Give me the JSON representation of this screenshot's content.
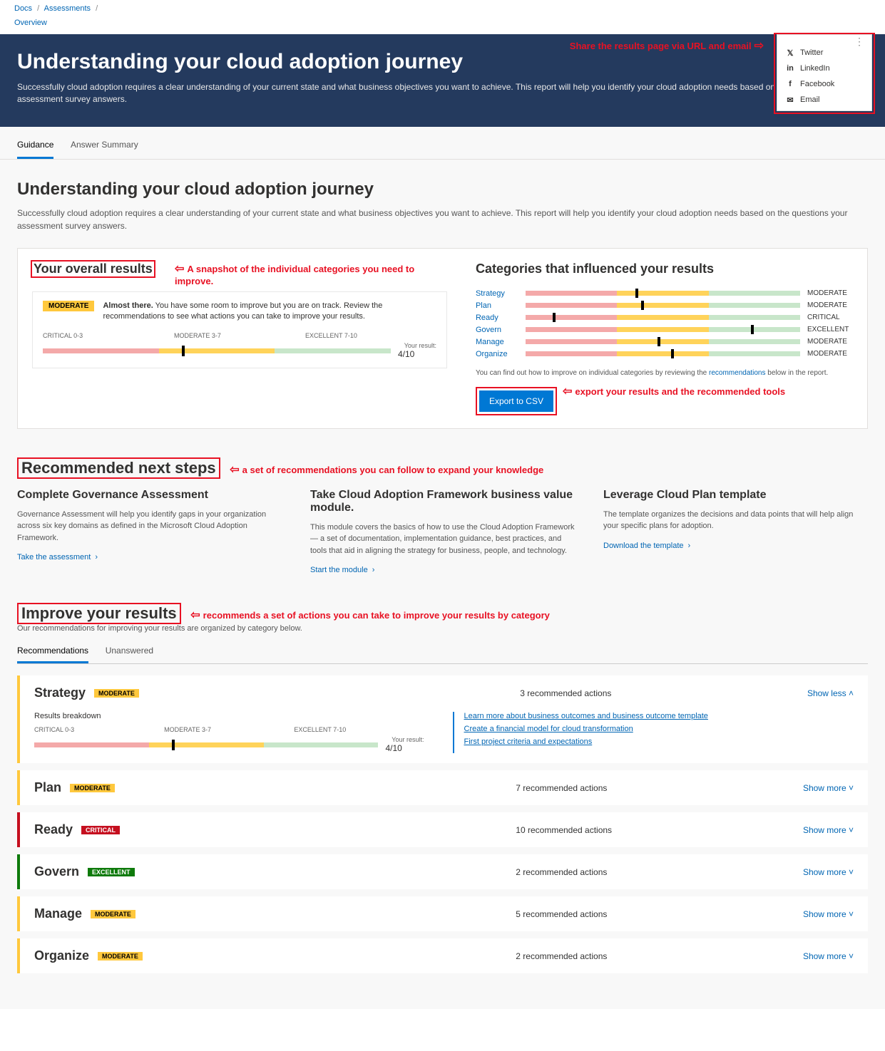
{
  "breadcrumbs": {
    "docs": "Docs",
    "assessments": "Assessments",
    "overview": "Overview"
  },
  "annotations": {
    "share": "Share the results page via URL and email",
    "snapshot": "A snapshot of the individual categories you need to improve.",
    "export": "export your results and the recommended tools",
    "recommended": "a set of recommendations you can follow to expand your knowledge",
    "improve": "recommends a set of actions you can take to improve your results by category"
  },
  "share_menu": {
    "items": [
      {
        "label": "Twitter",
        "icon": "twitter"
      },
      {
        "label": "LinkedIn",
        "icon": "linkedin"
      },
      {
        "label": "Facebook",
        "icon": "facebook"
      },
      {
        "label": "Email",
        "icon": "email"
      }
    ]
  },
  "hero": {
    "title": "Understanding your cloud adoption journey",
    "subtitle": "Successfully cloud adoption requires a clear understanding of your current state and what business objectives you want to achieve. This report will help you identify your cloud adoption needs based on the questions your assessment survey answers."
  },
  "tabs": {
    "guidance": "Guidance",
    "answer_summary": "Answer Summary"
  },
  "page": {
    "title": "Understanding your cloud adoption journey",
    "subtitle": "Successfully cloud adoption requires a clear understanding of your current state and what business objectives you want to achieve. This report will help you identify your cloud adoption needs based on the questions your assessment survey answers."
  },
  "overall": {
    "heading": "Your overall results",
    "badge": "MODERATE",
    "badge_class": "moderate",
    "lead": "Almost there.",
    "text": " You have some room to improve but you are on track. Review the recommendations to see what actions you can take to improve your results.",
    "scale": {
      "critical": "CRITICAL 0-3",
      "moderate": "MODERATE 3-7",
      "excellent": "EXCELLENT 7-10"
    },
    "result_label": "Your result:",
    "result_value": "4/10",
    "marker_pct": 40
  },
  "categories_panel": {
    "heading": "Categories that influenced your results",
    "note_prefix": "You can find out how to improve on individual categories by reviewing the ",
    "note_link": "recommendations",
    "note_suffix": " below in the report.",
    "export_label": "Export to CSV",
    "items": [
      {
        "name": "Strategy",
        "label": "MODERATE",
        "marker_pct": 40
      },
      {
        "name": "Plan",
        "label": "MODERATE",
        "marker_pct": 42
      },
      {
        "name": "Ready",
        "label": "CRITICAL",
        "marker_pct": 10
      },
      {
        "name": "Govern",
        "label": "EXCELLENT",
        "marker_pct": 82
      },
      {
        "name": "Manage",
        "label": "MODERATE",
        "marker_pct": 48
      },
      {
        "name": "Organize",
        "label": "MODERATE",
        "marker_pct": 53
      }
    ]
  },
  "recommended": {
    "heading": "Recommended next steps",
    "items": [
      {
        "title": "Complete Governance Assessment",
        "text": "Governance Assessment will help you identify gaps in your organization across six key domains as defined in the Microsoft Cloud Adoption Framework.",
        "link": "Take the assessment"
      },
      {
        "title": "Take Cloud Adoption Framework business value module.",
        "text": "This module covers the basics of how to use the Cloud Adoption Framework — a set of documentation, implementation guidance, best practices, and tools that aid in aligning the strategy for business, people, and technology.",
        "link": "Start the module"
      },
      {
        "title": "Leverage Cloud Plan template",
        "text": "The template organizes the decisions and data points that will help align your specific plans for adoption.",
        "link": "Download the template"
      }
    ]
  },
  "improve": {
    "heading": "Improve your results",
    "subtitle": "Our recommendations for improving your results are organized by category below.",
    "tabs": {
      "recommendations": "Recommendations",
      "unanswered": "Unanswered"
    },
    "show_less": "Show less",
    "show_more": "Show more",
    "breakdown_title": "Results breakdown",
    "items": [
      {
        "name": "Strategy",
        "badge": "MODERATE",
        "badge_class": "moderate",
        "count_text": "3 recommended actions",
        "expanded": true,
        "result_label": "Your result:",
        "result_value": "4/10",
        "marker_pct": 40,
        "actions": [
          "Learn more about business outcomes and business outcome template",
          "Create a financial model for cloud transformation",
          "First project criteria and expectations"
        ]
      },
      {
        "name": "Plan",
        "badge": "MODERATE",
        "badge_class": "moderate",
        "count_text": "7 recommended actions"
      },
      {
        "name": "Ready",
        "badge": "CRITICAL",
        "badge_class": "critical",
        "count_text": "10 recommended actions"
      },
      {
        "name": "Govern",
        "badge": "EXCELLENT",
        "badge_class": "excellent",
        "count_text": "2 recommended actions"
      },
      {
        "name": "Manage",
        "badge": "MODERATE",
        "badge_class": "moderate",
        "count_text": "5 recommended actions"
      },
      {
        "name": "Organize",
        "badge": "MODERATE",
        "badge_class": "moderate",
        "count_text": "2 recommended actions"
      }
    ]
  }
}
